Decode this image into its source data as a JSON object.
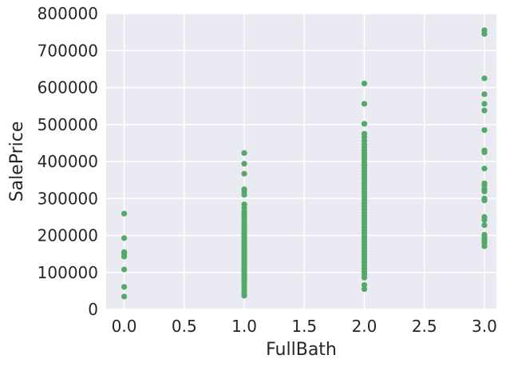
{
  "colors": {
    "plot_background": "#EAEAF2",
    "grid": "#FFFFFF",
    "marker": "#55A868",
    "text": "#262626"
  },
  "chart_data": {
    "type": "scatter",
    "title": "",
    "xlabel": "FullBath",
    "ylabel": "SalePrice",
    "xlim": [
      -0.15,
      3.1
    ],
    "ylim": [
      0,
      800000
    ],
    "grid": true,
    "legend": "none",
    "x_ticks": [
      {
        "value": 0.0,
        "label": "0.0"
      },
      {
        "value": 0.5,
        "label": "0.5"
      },
      {
        "value": 1.0,
        "label": "1.0"
      },
      {
        "value": 1.5,
        "label": "1.5"
      },
      {
        "value": 2.0,
        "label": "2.0"
      },
      {
        "value": 2.5,
        "label": "2.5"
      },
      {
        "value": 3.0,
        "label": "3.0"
      }
    ],
    "y_ticks": [
      {
        "value": 0,
        "label": "0"
      },
      {
        "value": 100000,
        "label": "100000"
      },
      {
        "value": 200000,
        "label": "200000"
      },
      {
        "value": 300000,
        "label": "300000"
      },
      {
        "value": 400000,
        "label": "400000"
      },
      {
        "value": 500000,
        "label": "500000"
      },
      {
        "value": 600000,
        "label": "600000"
      },
      {
        "value": 700000,
        "label": "700000"
      },
      {
        "value": 800000,
        "label": "800000"
      }
    ],
    "points": [
      {
        "x": 0,
        "y": 259000
      },
      {
        "x": 0,
        "y": 193000
      },
      {
        "x": 0,
        "y": 155000
      },
      {
        "x": 0,
        "y": 150000
      },
      {
        "x": 0,
        "y": 143000
      },
      {
        "x": 0,
        "y": 108000
      },
      {
        "x": 0,
        "y": 61000
      },
      {
        "x": 0,
        "y": 35000
      },
      {
        "x": 1,
        "y": 423000
      },
      {
        "x": 1,
        "y": 394000
      },
      {
        "x": 1,
        "y": 367000
      },
      {
        "x": 1,
        "y": 325000
      },
      {
        "x": 1,
        "y": 318000
      },
      {
        "x": 1,
        "y": 310000
      },
      {
        "x": 1,
        "y": 284000
      },
      {
        "x": 1,
        "y": 275000
      },
      {
        "x": 1,
        "y": 265000
      },
      {
        "x": 1,
        "y": 258000
      },
      {
        "x": 1,
        "y": 250000
      },
      {
        "x": 1,
        "y": 242000
      },
      {
        "x": 1,
        "y": 235000
      },
      {
        "x": 1,
        "y": 228000
      },
      {
        "x": 1,
        "y": 222000
      },
      {
        "x": 1,
        "y": 216000
      },
      {
        "x": 1,
        "y": 210000
      },
      {
        "x": 1,
        "y": 204000
      },
      {
        "x": 1,
        "y": 198000
      },
      {
        "x": 1,
        "y": 192000
      },
      {
        "x": 1,
        "y": 186000
      },
      {
        "x": 1,
        "y": 180000
      },
      {
        "x": 1,
        "y": 175000
      },
      {
        "x": 1,
        "y": 170000
      },
      {
        "x": 1,
        "y": 165000
      },
      {
        "x": 1,
        "y": 160000
      },
      {
        "x": 1,
        "y": 155000
      },
      {
        "x": 1,
        "y": 150000
      },
      {
        "x": 1,
        "y": 145000
      },
      {
        "x": 1,
        "y": 140000
      },
      {
        "x": 1,
        "y": 135000
      },
      {
        "x": 1,
        "y": 130000
      },
      {
        "x": 1,
        "y": 125000
      },
      {
        "x": 1,
        "y": 120000
      },
      {
        "x": 1,
        "y": 115000
      },
      {
        "x": 1,
        "y": 110000
      },
      {
        "x": 1,
        "y": 105000
      },
      {
        "x": 1,
        "y": 100000
      },
      {
        "x": 1,
        "y": 95000
      },
      {
        "x": 1,
        "y": 90000
      },
      {
        "x": 1,
        "y": 85000
      },
      {
        "x": 1,
        "y": 80000
      },
      {
        "x": 1,
        "y": 75000
      },
      {
        "x": 1,
        "y": 68000
      },
      {
        "x": 1,
        "y": 60000
      },
      {
        "x": 1,
        "y": 52000
      },
      {
        "x": 1,
        "y": 44000
      },
      {
        "x": 1,
        "y": 37000
      },
      {
        "x": 2,
        "y": 611000
      },
      {
        "x": 2,
        "y": 556000
      },
      {
        "x": 2,
        "y": 502000
      },
      {
        "x": 2,
        "y": 475000
      },
      {
        "x": 2,
        "y": 466000
      },
      {
        "x": 2,
        "y": 456000
      },
      {
        "x": 2,
        "y": 446000
      },
      {
        "x": 2,
        "y": 438000
      },
      {
        "x": 2,
        "y": 430000
      },
      {
        "x": 2,
        "y": 422000
      },
      {
        "x": 2,
        "y": 414000
      },
      {
        "x": 2,
        "y": 406000
      },
      {
        "x": 2,
        "y": 398000
      },
      {
        "x": 2,
        "y": 390000
      },
      {
        "x": 2,
        "y": 382000
      },
      {
        "x": 2,
        "y": 374000
      },
      {
        "x": 2,
        "y": 366000
      },
      {
        "x": 2,
        "y": 358000
      },
      {
        "x": 2,
        "y": 350000
      },
      {
        "x": 2,
        "y": 342000
      },
      {
        "x": 2,
        "y": 334000
      },
      {
        "x": 2,
        "y": 326000
      },
      {
        "x": 2,
        "y": 318000
      },
      {
        "x": 2,
        "y": 310000
      },
      {
        "x": 2,
        "y": 302000
      },
      {
        "x": 2,
        "y": 294000
      },
      {
        "x": 2,
        "y": 286000
      },
      {
        "x": 2,
        "y": 278000
      },
      {
        "x": 2,
        "y": 270000
      },
      {
        "x": 2,
        "y": 262000
      },
      {
        "x": 2,
        "y": 254000
      },
      {
        "x": 2,
        "y": 246000
      },
      {
        "x": 2,
        "y": 238000
      },
      {
        "x": 2,
        "y": 230000
      },
      {
        "x": 2,
        "y": 222000
      },
      {
        "x": 2,
        "y": 214000
      },
      {
        "x": 2,
        "y": 206000
      },
      {
        "x": 2,
        "y": 198000
      },
      {
        "x": 2,
        "y": 190000
      },
      {
        "x": 2,
        "y": 182000
      },
      {
        "x": 2,
        "y": 174000
      },
      {
        "x": 2,
        "y": 166000
      },
      {
        "x": 2,
        "y": 158000
      },
      {
        "x": 2,
        "y": 150000
      },
      {
        "x": 2,
        "y": 142000
      },
      {
        "x": 2,
        "y": 134000
      },
      {
        "x": 2,
        "y": 126000
      },
      {
        "x": 2,
        "y": 118000
      },
      {
        "x": 2,
        "y": 110000
      },
      {
        "x": 2,
        "y": 102000
      },
      {
        "x": 2,
        "y": 94000
      },
      {
        "x": 2,
        "y": 86000
      },
      {
        "x": 2,
        "y": 66000
      },
      {
        "x": 2,
        "y": 55000
      },
      {
        "x": 3,
        "y": 755000
      },
      {
        "x": 3,
        "y": 745000
      },
      {
        "x": 3,
        "y": 625000
      },
      {
        "x": 3,
        "y": 582000
      },
      {
        "x": 3,
        "y": 556000
      },
      {
        "x": 3,
        "y": 538000
      },
      {
        "x": 3,
        "y": 485000
      },
      {
        "x": 3,
        "y": 430000
      },
      {
        "x": 3,
        "y": 425000
      },
      {
        "x": 3,
        "y": 381000
      },
      {
        "x": 3,
        "y": 341000
      },
      {
        "x": 3,
        "y": 335000
      },
      {
        "x": 3,
        "y": 325000
      },
      {
        "x": 3,
        "y": 319000
      },
      {
        "x": 3,
        "y": 300000
      },
      {
        "x": 3,
        "y": 295000
      },
      {
        "x": 3,
        "y": 250000
      },
      {
        "x": 3,
        "y": 242000
      },
      {
        "x": 3,
        "y": 228000
      },
      {
        "x": 3,
        "y": 202000
      },
      {
        "x": 3,
        "y": 195000
      },
      {
        "x": 3,
        "y": 187000
      },
      {
        "x": 3,
        "y": 180000
      },
      {
        "x": 3,
        "y": 171000
      }
    ]
  }
}
